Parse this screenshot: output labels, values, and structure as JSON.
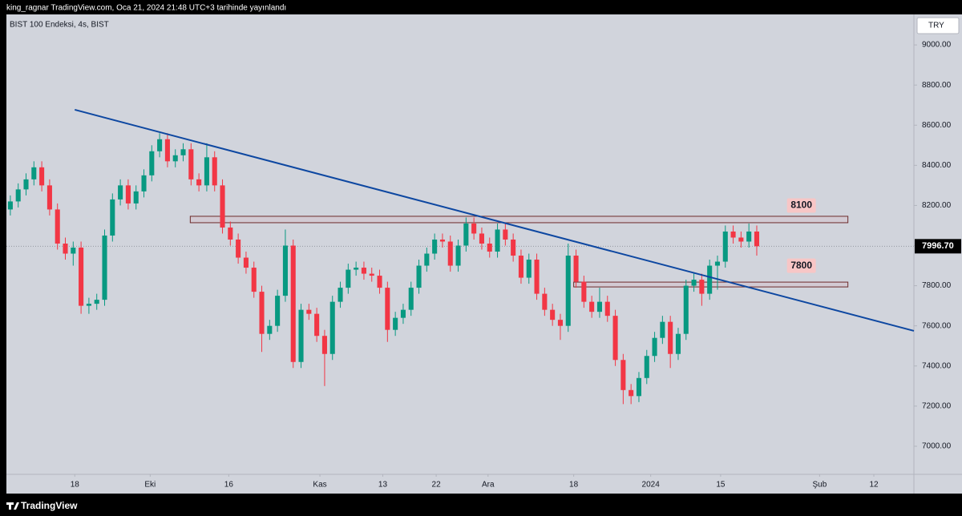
{
  "header": {
    "text": "king_ragnar TradingView.com, Oca 21, 2024 21:48 UTC+3 tarihinde yayınlandı"
  },
  "footer": {
    "brand": "TradingView"
  },
  "chart_data": {
    "type": "candlestick",
    "title": "BIST 100 Endeksi, 4s, BIST",
    "currency": "TRY",
    "up_color": "#089981",
    "down_color": "#f23645",
    "grid": false,
    "open": [
      8180,
      8220,
      8280,
      8330,
      8390,
      8300,
      8180,
      8010,
      7960,
      7990,
      7700,
      7710,
      7730,
      8050,
      8230,
      8300,
      8210,
      8270,
      8350,
      8470,
      8530,
      8420,
      8450,
      8480,
      8330,
      8300,
      8440,
      8300,
      8090,
      8030,
      7940,
      7890,
      7770,
      7560,
      7600,
      7750,
      8000,
      7420,
      7680,
      7660,
      7550,
      7460,
      7720,
      7790,
      7880,
      7890,
      7860,
      7850,
      7790,
      7580,
      7640,
      7680,
      7790,
      7900,
      7960,
      8030,
      8020,
      7900,
      8000,
      8110,
      8060,
      8010,
      7970,
      8080,
      8030,
      7950,
      7840,
      7930,
      7760,
      7680,
      7630,
      7600,
      7950,
      7820,
      7720,
      7670,
      7720,
      7650,
      7430,
      7280,
      7250,
      7340,
      7450,
      7540,
      7620,
      7460,
      7560,
      7800,
      7830,
      7760,
      7900,
      7920,
      8070,
      8040,
      8020,
      8070
    ],
    "high": [
      8250,
      8310,
      8360,
      8420,
      8420,
      8330,
      8210,
      8040,
      8020,
      8020,
      7740,
      7760,
      8080,
      8260,
      8330,
      8330,
      8300,
      8380,
      8500,
      8560,
      8560,
      8480,
      8510,
      8510,
      8360,
      8510,
      8470,
      8330,
      8120,
      8060,
      7970,
      7920,
      7800,
      7630,
      7780,
      8080,
      8030,
      7710,
      7710,
      7690,
      7580,
      7750,
      7820,
      7910,
      7920,
      7920,
      7890,
      7880,
      7820,
      7670,
      7710,
      7820,
      7930,
      7990,
      8060,
      8060,
      8050,
      8030,
      8140,
      8140,
      8090,
      8040,
      8110,
      8110,
      8060,
      7980,
      7960,
      7960,
      7790,
      7710,
      7660,
      8010,
      7980,
      7850,
      7750,
      7790,
      7750,
      7680,
      7460,
      7310,
      7370,
      7480,
      7570,
      7650,
      7650,
      7590,
      7830,
      7860,
      7860,
      7930,
      7950,
      8100,
      8100,
      8070,
      8110,
      8100
    ],
    "low": [
      8150,
      8190,
      8250,
      8300,
      8270,
      8150,
      7980,
      7930,
      7900,
      7660,
      7660,
      7680,
      7700,
      8020,
      8200,
      8180,
      8180,
      8240,
      8320,
      8440,
      8390,
      8390,
      8420,
      8300,
      8270,
      8270,
      8270,
      8060,
      8000,
      7910,
      7860,
      7740,
      7470,
      7530,
      7570,
      7720,
      7390,
      7390,
      7630,
      7520,
      7300,
      7430,
      7690,
      7760,
      7850,
      7830,
      7820,
      7760,
      7520,
      7550,
      7610,
      7650,
      7760,
      7870,
      7930,
      7990,
      7870,
      7870,
      7970,
      8030,
      7980,
      7940,
      7940,
      8000,
      7920,
      7810,
      7810,
      7730,
      7650,
      7600,
      7530,
      7570,
      7790,
      7690,
      7640,
      7640,
      7620,
      7400,
      7210,
      7210,
      7220,
      7310,
      7420,
      7510,
      7390,
      7430,
      7530,
      7770,
      7700,
      7730,
      7780,
      7890,
      8010,
      7990,
      7990,
      7950
    ],
    "close": [
      8220,
      8280,
      8330,
      8390,
      8300,
      8180,
      8010,
      7960,
      7990,
      7700,
      7710,
      7730,
      8050,
      8230,
      8300,
      8210,
      8270,
      8350,
      8470,
      8530,
      8420,
      8450,
      8480,
      8330,
      8300,
      8440,
      8300,
      8090,
      8030,
      7940,
      7890,
      7770,
      7560,
      7600,
      7750,
      8000,
      7420,
      7680,
      7660,
      7550,
      7460,
      7720,
      7790,
      7880,
      7890,
      7860,
      7850,
      7790,
      7580,
      7640,
      7680,
      7790,
      7900,
      7960,
      8030,
      8020,
      7900,
      8000,
      8110,
      8060,
      8010,
      7970,
      8080,
      8030,
      7950,
      7840,
      7930,
      7760,
      7680,
      7630,
      7600,
      7950,
      7820,
      7720,
      7670,
      7720,
      7650,
      7430,
      7280,
      7250,
      7340,
      7450,
      7540,
      7620,
      7460,
      7560,
      7800,
      7830,
      7760,
      7900,
      7920,
      8070,
      8040,
      8020,
      8070,
      7996.7
    ],
    "xlim": [
      -0.5,
      115
    ],
    "xticks": [
      {
        "value": 8.2,
        "label": "18"
      },
      {
        "value": 17.8,
        "label": "Eki"
      },
      {
        "value": 27.8,
        "label": "16"
      },
      {
        "value": 39.4,
        "label": "Kas"
      },
      {
        "value": 47.4,
        "label": "13"
      },
      {
        "value": 54.2,
        "label": "22"
      },
      {
        "value": 60.8,
        "label": "Ara"
      },
      {
        "value": 71.7,
        "label": "18"
      },
      {
        "value": 81.5,
        "label": "2024"
      },
      {
        "value": 90.4,
        "label": "15"
      },
      {
        "value": 103.0,
        "label": "Şub"
      },
      {
        "value": 109.9,
        "label": "12"
      }
    ],
    "ylim": [
      6860,
      9152
    ],
    "yticks": [
      {
        "value": 7000,
        "label": "7000.00"
      },
      {
        "value": 7200,
        "label": "7200.00"
      },
      {
        "value": 7400,
        "label": "7400.00"
      },
      {
        "value": 7600,
        "label": "7600.00"
      },
      {
        "value": 7800,
        "label": "7800.00"
      },
      {
        "value": 8000,
        "label": "8000.00"
      },
      {
        "value": 8200,
        "label": "8200.00"
      },
      {
        "value": 8400,
        "label": "8400.00"
      },
      {
        "value": 8600,
        "label": "8600.00"
      },
      {
        "value": 8800,
        "label": "8800.00"
      },
      {
        "value": 9000,
        "label": "9000.00"
      }
    ],
    "trendline": {
      "x": [
        8.2,
        115
      ],
      "y": [
        8677,
        7575
      ],
      "color": "#0d47a1"
    },
    "levels": [
      {
        "value": 8100,
        "label": "8100",
        "x": [
          22.9,
          106.6
        ],
        "bottom": 8114,
        "top": 8146
      },
      {
        "value": 7800,
        "label": "7800",
        "x": [
          71.7,
          106.6
        ],
        "bottom": 7794,
        "top": 7818
      }
    ],
    "last_price": {
      "value": 7996.7,
      "label": "7996.70"
    }
  }
}
